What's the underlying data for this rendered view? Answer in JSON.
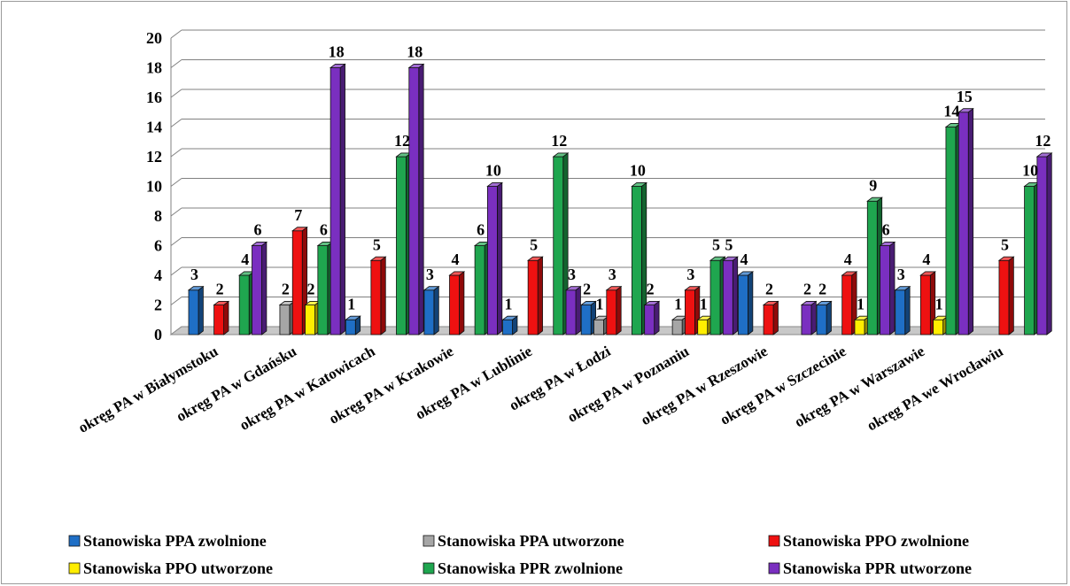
{
  "chart_data": {
    "type": "bar",
    "categories": [
      "okręg PA w Białymstoku",
      "okręg PA w Gdańsku",
      "okręg PA w Katowicach",
      "okręg PA w Krakowie",
      "okręg PA w Lublinie",
      "okręg PA w Łodzi",
      "okręg PA w Poznaniu",
      "okręg PA w Rzeszowie",
      "okręg PA w Szczecinie",
      "okręg PA w Warszawie",
      "okręg PA we Wrocławiu"
    ],
    "series": [
      {
        "name": "Stanowiska PPA zwolnione",
        "color": "#1f6fc6",
        "values": [
          3,
          null,
          1,
          3,
          1,
          2,
          null,
          4,
          2,
          3,
          null
        ]
      },
      {
        "name": "Stanowiska PPA utworzone",
        "color": "#a6a6a6",
        "values": [
          null,
          2,
          null,
          null,
          null,
          1,
          1,
          null,
          null,
          null,
          null
        ]
      },
      {
        "name": "Stanowiska PPO zwolnione",
        "color": "#ee1111",
        "values": [
          2,
          7,
          5,
          4,
          5,
          3,
          3,
          2,
          4,
          4,
          5
        ]
      },
      {
        "name": "Stanowiska PPO utworzone",
        "color": "#ffee00",
        "values": [
          null,
          2,
          null,
          null,
          null,
          null,
          1,
          null,
          1,
          1,
          null
        ]
      },
      {
        "name": "Stanowiska PPR zwolnione",
        "color": "#1fa64f",
        "values": [
          4,
          6,
          12,
          6,
          12,
          10,
          5,
          null,
          9,
          14,
          10
        ]
      },
      {
        "name": "Stanowiska PPR utworzone",
        "color": "#7a2fc0",
        "values": [
          6,
          18,
          18,
          10,
          3,
          2,
          5,
          2,
          6,
          15,
          12
        ]
      }
    ],
    "ylim": [
      0,
      20
    ],
    "yticks": [
      "0",
      "2",
      "4",
      "6",
      "8",
      "10",
      "12",
      "14",
      "16",
      "18",
      "20"
    ],
    "grid": true,
    "legend": "bottom"
  }
}
